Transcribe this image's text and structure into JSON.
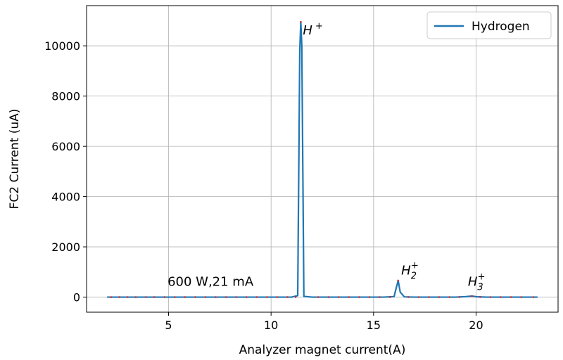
{
  "chart_data": {
    "type": "line",
    "xlabel": "Analyzer magnet current(A)",
    "ylabel": "FC2 Current (uA)",
    "xlim": [
      1.0,
      24.0
    ],
    "ylim": [
      -600,
      11600
    ],
    "xticks": [
      5,
      10,
      15,
      20
    ],
    "yticks": [
      0,
      2000,
      4000,
      6000,
      8000,
      10000
    ],
    "grid": true,
    "legend_position": "top-right",
    "series": [
      {
        "name": "Hydrogen",
        "color": "#1f77b4",
        "x": [
          2.0,
          2.5,
          3.0,
          3.5,
          4.0,
          4.5,
          5.0,
          5.5,
          6.0,
          6.5,
          7.0,
          7.5,
          8.0,
          8.5,
          9.0,
          9.5,
          10.0,
          10.5,
          11.0,
          11.3,
          11.4,
          11.45,
          11.5,
          11.6,
          12.0,
          12.5,
          13.0,
          13.5,
          14.0,
          14.5,
          15.0,
          15.5,
          16.0,
          16.1,
          16.2,
          16.3,
          16.5,
          17.0,
          17.5,
          18.0,
          18.5,
          19.0,
          19.5,
          19.8,
          20.0,
          20.5,
          21.0,
          21.5,
          22.0,
          22.5,
          23.0
        ],
        "y": [
          0,
          0,
          0,
          0,
          0,
          0,
          0,
          0,
          0,
          0,
          0,
          0,
          0,
          0,
          0,
          0,
          0,
          0,
          0,
          60,
          9800,
          10950,
          10000,
          30,
          0,
          0,
          0,
          0,
          0,
          0,
          0,
          0,
          20,
          350,
          660,
          200,
          10,
          0,
          0,
          0,
          0,
          0,
          20,
          40,
          15,
          0,
          0,
          0,
          0,
          0,
          0
        ]
      }
    ],
    "sample_points": {
      "color": "#d62728",
      "x": [
        2.2,
        2.6,
        3.0,
        3.4,
        3.9,
        4.3,
        4.8,
        5.3,
        5.8,
        6.3,
        6.8,
        7.3,
        7.8,
        8.3,
        8.8,
        9.3,
        9.8,
        10.3,
        10.8,
        11.2,
        11.45,
        12.3,
        12.8,
        13.3,
        13.8,
        14.3,
        14.8,
        15.3,
        15.8,
        16.2,
        16.7,
        17.2,
        17.7,
        18.2,
        18.7,
        19.2,
        19.8,
        20.2,
        20.7,
        21.2,
        21.7,
        22.2,
        22.8
      ],
      "y": [
        0,
        0,
        0,
        0,
        0,
        0,
        0,
        0,
        0,
        0,
        0,
        0,
        0,
        0,
        0,
        0,
        0,
        0,
        0,
        0,
        10950,
        0,
        0,
        0,
        0,
        0,
        0,
        0,
        0,
        660,
        0,
        0,
        0,
        0,
        0,
        0,
        40,
        0,
        0,
        0,
        0,
        0,
        0
      ]
    },
    "annotations": [
      {
        "id": "annot-h-plus",
        "base": "H",
        "sup": "+",
        "sub": "",
        "x": 11.55,
        "y": 10450
      },
      {
        "id": "annot-h2-plus",
        "base": "H",
        "sup": "+",
        "sub": "2",
        "x": 16.35,
        "y": 900
      },
      {
        "id": "annot-h3-plus",
        "base": "H",
        "sup": "+",
        "sub": "3",
        "x": 19.6,
        "y": 450
      }
    ],
    "note": {
      "text": "600 W,21 mA",
      "x": 4.95,
      "y": 450
    }
  }
}
